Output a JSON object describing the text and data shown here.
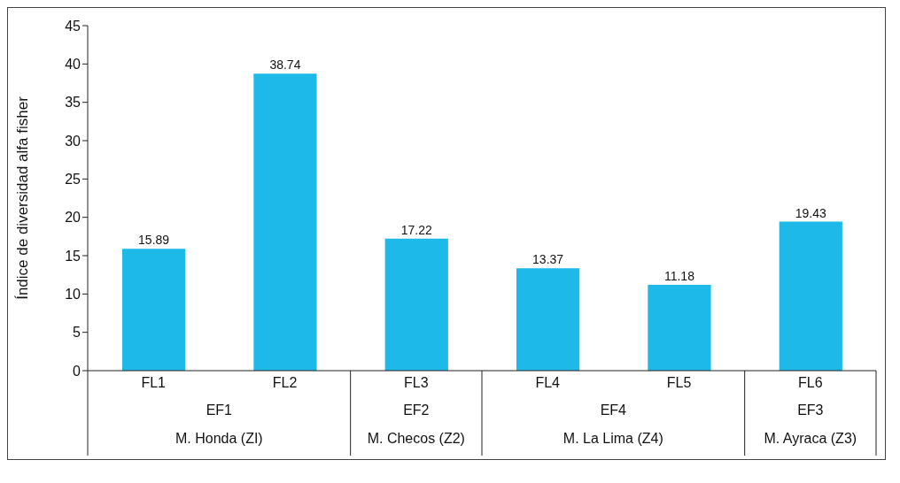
{
  "chart_data": {
    "type": "bar",
    "ylabel": "Índice de diversidad alfa fisher",
    "categories": [
      "FL1",
      "FL2",
      "FL3",
      "FL4",
      "FL5",
      "FL6"
    ],
    "values": [
      15.89,
      38.74,
      17.22,
      13.37,
      11.18,
      19.43
    ],
    "color": "#1cb9e9",
    "ylim": [
      0,
      45
    ],
    "yticks": [
      0,
      5,
      10,
      15,
      20,
      25,
      30,
      35,
      40,
      45
    ],
    "grid": false,
    "legend": false,
    "data_labels": true,
    "annotations": [
      "EF1",
      "EF2",
      "EF4",
      "EF3",
      "M. Honda (ZI)",
      "M. Checos (Z2)",
      "M. La Lima (Z4)",
      "M. Ayraca (Z3)"
    ]
  }
}
